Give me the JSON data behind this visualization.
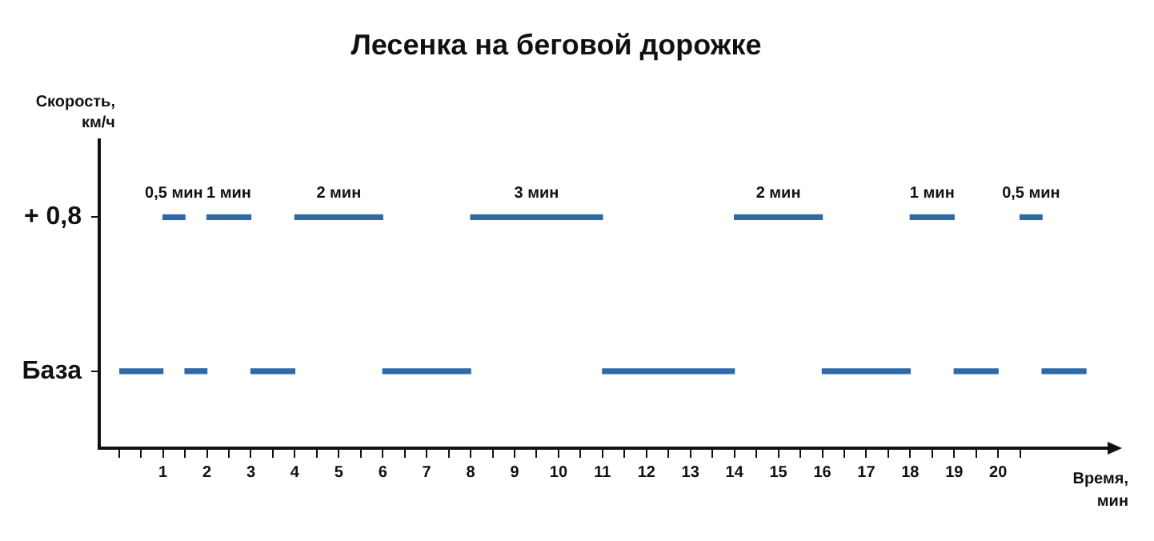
{
  "chart_data": {
    "type": "bar",
    "orientation": "horizontal",
    "title": "Лесенка на беговой дорожке",
    "xlabel": "Время,\nмин",
    "ylabel": "Скорость,\nкм/ч",
    "categories": [
      "+ 0,8",
      "База"
    ],
    "xlim": [
      -0.45,
      22.6
    ],
    "xticks": [
      {
        "value": 0,
        "label": null
      },
      {
        "value": 0.5,
        "label": null
      },
      1,
      {
        "value": 1.5,
        "label": null
      },
      2,
      {
        "value": 2.5,
        "label": null
      },
      3,
      {
        "value": 3.5,
        "label": null
      },
      4,
      {
        "value": 4.5,
        "label": null
      },
      5,
      {
        "value": 5.5,
        "label": null
      },
      6,
      {
        "value": 6.5,
        "label": null
      },
      7,
      {
        "value": 7.5,
        "label": null
      },
      8,
      {
        "value": 8.5,
        "label": null
      },
      9,
      {
        "value": 9.5,
        "label": null
      },
      10,
      {
        "value": 10.5,
        "label": null
      },
      11,
      {
        "value": 11.5,
        "label": null
      },
      12,
      {
        "value": 12.5,
        "label": null
      },
      13,
      {
        "value": 13.5,
        "label": null
      },
      14,
      {
        "value": 14.5,
        "label": null
      },
      15,
      {
        "value": 15.5,
        "label": null
      },
      16,
      {
        "value": 16.5,
        "label": null
      },
      17,
      {
        "value": 17.5,
        "label": null
      },
      18,
      {
        "value": 18.5,
        "label": null
      },
      19,
      {
        "value": 19.5,
        "label": null
      },
      20,
      {
        "value": 20.5,
        "label": null
      }
    ],
    "series": [
      {
        "color": "#2f6aa6",
        "base": [
          1,
          0
        ],
        "values": [
          0.5,
          1
        ]
      },
      {
        "color": "#2f6aa6",
        "base": [
          2,
          1.5
        ],
        "values": [
          1,
          0.5
        ]
      },
      {
        "color": "#2f6aa6",
        "base": [
          4,
          3
        ],
        "values": [
          2,
          1
        ]
      },
      {
        "color": "#2f6aa6",
        "base": [
          8,
          6
        ],
        "values": [
          3,
          2
        ]
      },
      {
        "color": "#2f6aa6",
        "base": [
          14,
          11
        ],
        "values": [
          2,
          3
        ]
      },
      {
        "color": "#2f6aa6",
        "base": [
          18,
          16
        ],
        "values": [
          1,
          2
        ]
      },
      {
        "color": "#2f6aa6",
        "base": [
          20.5,
          19
        ],
        "values": [
          0.5,
          1
        ]
      },
      {
        "color": "#2f6aa6",
        "base": [
          null,
          21
        ],
        "values": [
          null,
          1
        ]
      }
    ],
    "annotations": [
      {
        "text": "0,5 мин",
        "x": 1.25,
        "y": "+ 0,8"
      },
      {
        "text": "1 мин",
        "x": 2.5,
        "y": "+ 0,8"
      },
      {
        "text": "2 мин",
        "x": 5,
        "y": "+ 0,8"
      },
      {
        "text": "3 мин",
        "x": 9.5,
        "y": "+ 0,8"
      },
      {
        "text": "2 мин",
        "x": 15,
        "y": "+ 0,8"
      },
      {
        "text": "1 мин",
        "x": 18.5,
        "y": "+ 0,8"
      },
      {
        "text": "0,5 мин",
        "x": 20.75,
        "y": "+ 0,8"
      }
    ],
    "grid": false,
    "legend": false
  }
}
